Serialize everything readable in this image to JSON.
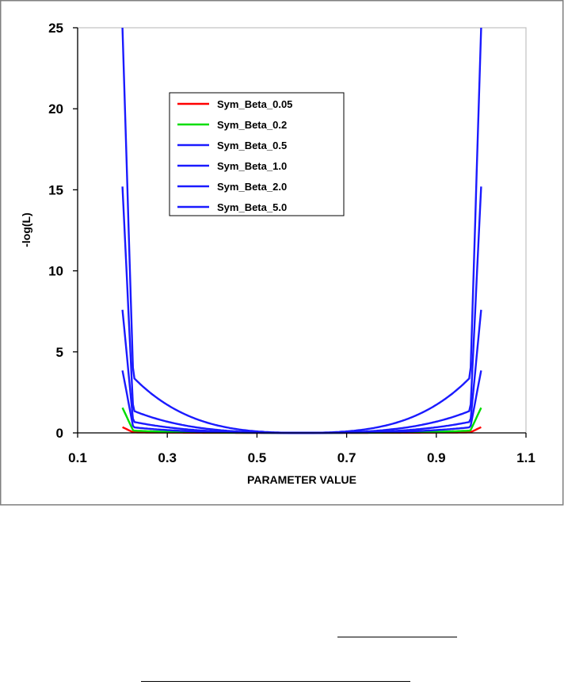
{
  "chart_data": {
    "type": "line",
    "title": "",
    "xlabel": "PARAMETER VALUE",
    "ylabel": "-log(L)",
    "xlim": [
      0.1,
      1.1
    ],
    "ylim": [
      0,
      25
    ],
    "x_ticks": [
      "0.1",
      "0.3",
      "0.5",
      "0.7",
      "0.9",
      "1.1"
    ],
    "y_ticks": [
      "0",
      "5",
      "10",
      "15",
      "20",
      "25"
    ],
    "grid": false,
    "legend_position": "upper-left",
    "series": [
      {
        "name": "Sym_Beta_0.05",
        "color": "#ff0000",
        "concentration": 0.05,
        "x": [
          0.2,
          0.201,
          0.21,
          0.3,
          0.4,
          0.5,
          0.6,
          0.7,
          0.8,
          0.9,
          0.99,
          0.999,
          1.0
        ],
        "y": [
          0.35,
          0.3,
          0.19,
          0.07,
          0.03,
          0.01,
          0.0,
          0.01,
          0.03,
          0.07,
          0.19,
          0.3,
          0.35
        ]
      },
      {
        "name": "Sym_Beta_0.2",
        "color": "#00dd00",
        "concentration": 0.2,
        "x": [
          0.2,
          0.201,
          0.21,
          0.3,
          0.4,
          0.5,
          0.6,
          0.7,
          0.8,
          0.9,
          0.99,
          0.999,
          1.0
        ],
        "y": [
          1.55,
          1.2,
          0.75,
          0.28,
          0.1,
          0.02,
          0.0,
          0.02,
          0.1,
          0.28,
          0.75,
          1.2,
          1.55
        ]
      },
      {
        "name": "Sym_Beta_0.5",
        "color": "#1a1aff",
        "concentration": 0.5,
        "x": [
          0.2,
          0.201,
          0.21,
          0.3,
          0.4,
          0.5,
          0.6,
          0.7,
          0.8,
          0.9,
          0.99,
          0.999,
          1.0
        ],
        "y": [
          3.85,
          3.0,
          1.9,
          0.7,
          0.25,
          0.05,
          0.0,
          0.05,
          0.25,
          0.7,
          1.9,
          3.0,
          3.85
        ]
      },
      {
        "name": "Sym_Beta_1.0",
        "color": "#1a1aff",
        "concentration": 1.0,
        "x": [
          0.2,
          0.201,
          0.21,
          0.3,
          0.4,
          0.5,
          0.6,
          0.7,
          0.8,
          0.9,
          0.99,
          0.999,
          1.0
        ],
        "y": [
          7.6,
          6.0,
          3.75,
          1.4,
          0.5,
          0.1,
          0.0,
          0.1,
          0.5,
          1.4,
          3.75,
          6.0,
          7.6
        ]
      },
      {
        "name": "Sym_Beta_2.0",
        "color": "#1a1aff",
        "concentration": 2.0,
        "x": [
          0.2,
          0.201,
          0.21,
          0.3,
          0.4,
          0.5,
          0.6,
          0.7,
          0.8,
          0.9,
          0.99,
          0.999,
          1.0
        ],
        "y": [
          15.2,
          12.0,
          7.5,
          2.8,
          1.0,
          0.2,
          0.0,
          0.2,
          1.0,
          2.8,
          7.5,
          12.0,
          15.2
        ]
      },
      {
        "name": "Sym_Beta_5.0",
        "color": "#1a1aff",
        "concentration": 5.0,
        "x": [
          0.2,
          0.201,
          0.21,
          0.3,
          0.4,
          0.5,
          0.6,
          0.7,
          0.8,
          0.9,
          0.99,
          0.999,
          1.0
        ],
        "y": [
          25,
          25,
          18.8,
          7.0,
          2.5,
          0.5,
          0.0,
          0.5,
          2.5,
          7.0,
          18.8,
          25,
          25
        ]
      }
    ]
  }
}
